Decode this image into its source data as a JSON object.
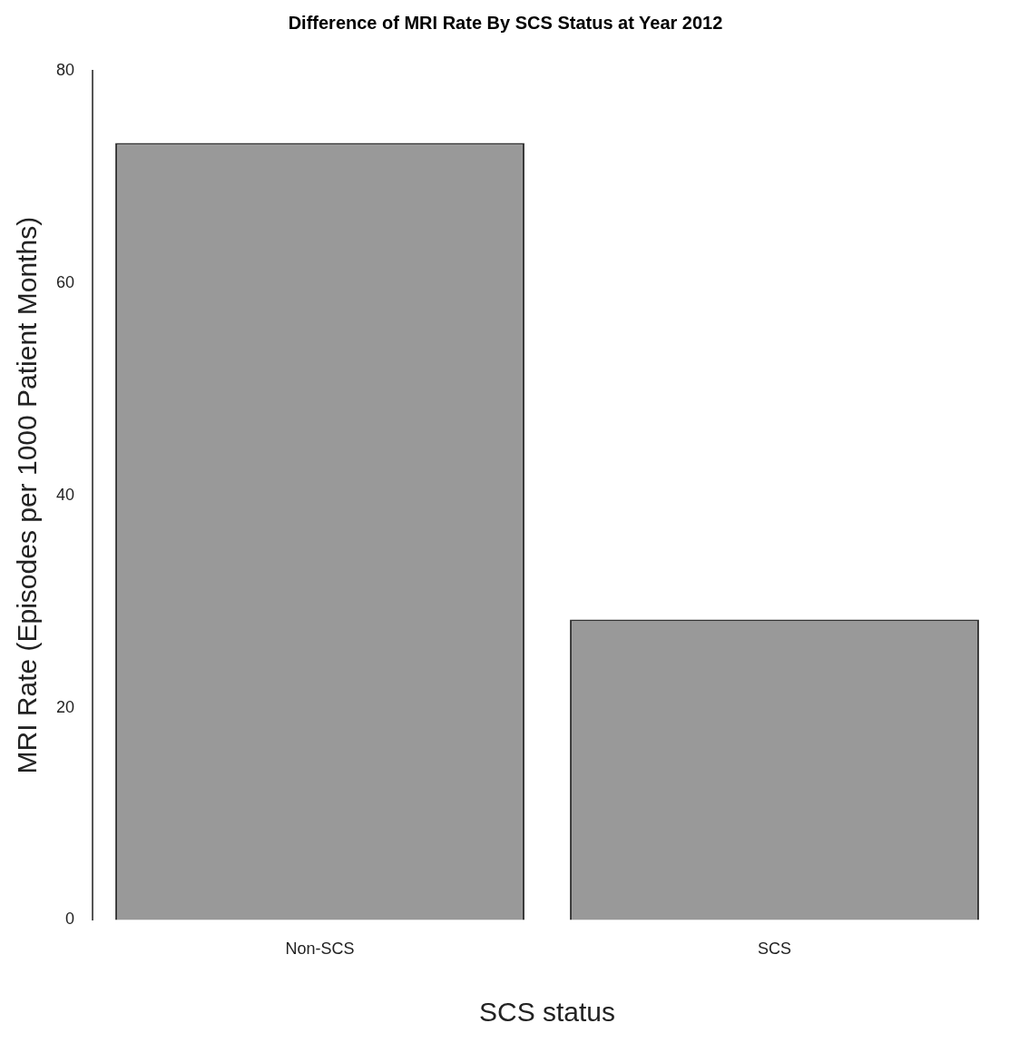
{
  "chart_data": {
    "type": "bar",
    "title": "Difference of MRI Rate By SCS Status at Year 2012",
    "xlabel": "SCS status",
    "ylabel": "MRI Rate (Episodes per 1000 Patient Months)",
    "categories": [
      "Non-SCS",
      "SCS"
    ],
    "values": [
      73.2,
      28.3
    ],
    "color": "#999999",
    "ylim": [
      0,
      80
    ],
    "yticks": [
      0,
      20,
      40,
      60,
      80
    ],
    "grid": false,
    "legend": false
  }
}
